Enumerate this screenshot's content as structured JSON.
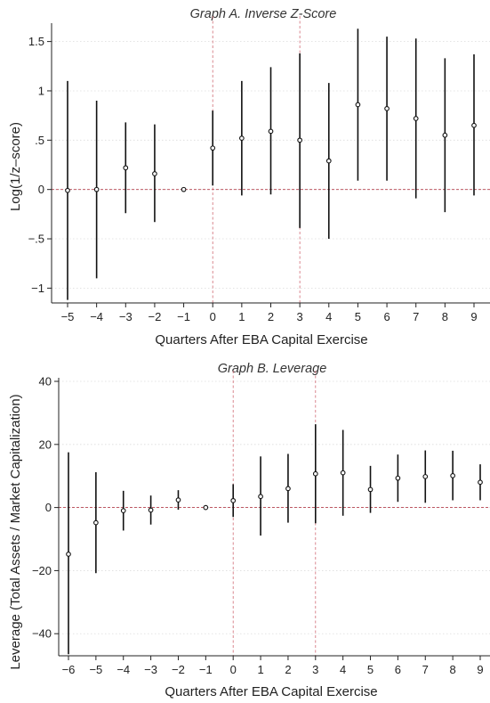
{
  "chart_data": [
    {
      "type": "scatter",
      "title": "Graph A. Inverse Z-Score",
      "xlabel": "Quarters After EBA Capital Exercise",
      "ylabel": "Log(1/z–score)",
      "xlim": [
        -5,
        9
      ],
      "ylim": [
        -1.15,
        1.65
      ],
      "x_ticks": [
        "−5",
        "−4",
        "−3",
        "−2",
        "−1",
        "0",
        "1",
        "2",
        "3",
        "4",
        "5",
        "6",
        "7",
        "8",
        "9"
      ],
      "y_ticks": [
        {
          "value": 1.5,
          "label": "1.5"
        },
        {
          "value": 1,
          "label": "1"
        },
        {
          "value": 0.5,
          "label": ".5"
        },
        {
          "value": 0,
          "label": "0"
        },
        {
          "value": -0.5,
          "label": "−.5"
        },
        {
          "value": -1,
          "label": "−1"
        }
      ],
      "grid": true,
      "reference_lines": {
        "y": [
          0
        ],
        "x": [
          0,
          3
        ]
      },
      "points": [
        {
          "x": -5,
          "y": -0.01,
          "low": -1.12,
          "high": 1.1
        },
        {
          "x": -4,
          "y": 0.0,
          "low": -0.9,
          "high": 0.9
        },
        {
          "x": -3,
          "y": 0.22,
          "low": -0.24,
          "high": 0.68
        },
        {
          "x": -2,
          "y": 0.16,
          "low": -0.33,
          "high": 0.66
        },
        {
          "x": -1,
          "y": 0.0,
          "low": 0.0,
          "high": 0.0
        },
        {
          "x": 0,
          "y": 0.42,
          "low": 0.04,
          "high": 0.8
        },
        {
          "x": 1,
          "y": 0.52,
          "low": -0.06,
          "high": 1.1
        },
        {
          "x": 2,
          "y": 0.59,
          "low": -0.05,
          "high": 1.24
        },
        {
          "x": 3,
          "y": 0.5,
          "low": -0.39,
          "high": 1.38
        },
        {
          "x": 4,
          "y": 0.29,
          "low": -0.5,
          "high": 1.08
        },
        {
          "x": 5,
          "y": 0.86,
          "low": 0.09,
          "high": 1.63
        },
        {
          "x": 6,
          "y": 0.82,
          "low": 0.09,
          "high": 1.55
        },
        {
          "x": 7,
          "y": 0.72,
          "low": -0.09,
          "high": 1.53
        },
        {
          "x": 8,
          "y": 0.55,
          "low": -0.23,
          "high": 1.33
        },
        {
          "x": 9,
          "y": 0.65,
          "low": -0.06,
          "high": 1.37
        }
      ]
    },
    {
      "type": "scatter",
      "title": "Graph B. Leverage",
      "xlabel": "Quarters After EBA Capital Exercise",
      "ylabel": "Leverage (Total Assets / Market Capitalization)",
      "xlim": [
        -6,
        9
      ],
      "ylim": [
        -47,
        40
      ],
      "x_ticks": [
        "−6",
        "−5",
        "−4",
        "−3",
        "−2",
        "−1",
        "0",
        "1",
        "2",
        "3",
        "4",
        "5",
        "6",
        "7",
        "8",
        "9"
      ],
      "y_ticks": [
        {
          "value": 40,
          "label": "40"
        },
        {
          "value": 20,
          "label": "20"
        },
        {
          "value": 0,
          "label": "0"
        },
        {
          "value": -20,
          "label": "−20"
        },
        {
          "value": -40,
          "label": "−40"
        }
      ],
      "grid": true,
      "reference_lines": {
        "y": [
          0
        ],
        "x": [
          0,
          3
        ]
      },
      "points": [
        {
          "x": -6,
          "y": -14.8,
          "low": -46.5,
          "high": 17.5
        },
        {
          "x": -5,
          "y": -4.8,
          "low": -20.8,
          "high": 11.2
        },
        {
          "x": -4,
          "y": -1.0,
          "low": -7.3,
          "high": 5.3
        },
        {
          "x": -3,
          "y": -0.8,
          "low": -5.4,
          "high": 3.8
        },
        {
          "x": -2,
          "y": 2.4,
          "low": -0.7,
          "high": 5.5
        },
        {
          "x": -1,
          "y": 0.0,
          "low": 0.0,
          "high": 0.0
        },
        {
          "x": 0,
          "y": 2.2,
          "low": -3.0,
          "high": 7.4
        },
        {
          "x": 1,
          "y": 3.5,
          "low": -8.9,
          "high": 16.2
        },
        {
          "x": 2,
          "y": 6.0,
          "low": -4.8,
          "high": 17.0
        },
        {
          "x": 3,
          "y": 10.7,
          "low": -5.0,
          "high": 26.4
        },
        {
          "x": 4,
          "y": 11.0,
          "low": -2.6,
          "high": 24.6
        },
        {
          "x": 5,
          "y": 5.7,
          "low": -1.7,
          "high": 13.2
        },
        {
          "x": 6,
          "y": 9.3,
          "low": 1.8,
          "high": 16.8
        },
        {
          "x": 7,
          "y": 9.8,
          "low": 1.5,
          "high": 18.1
        },
        {
          "x": 8,
          "y": 10.1,
          "low": 2.3,
          "high": 18.0
        },
        {
          "x": 9,
          "y": 8.0,
          "low": 2.3,
          "high": 13.7
        }
      ]
    }
  ]
}
